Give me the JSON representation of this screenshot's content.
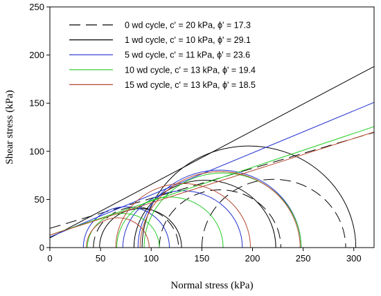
{
  "chart_data": {
    "type": "line",
    "xlabel": "Normal stress (kPa)",
    "ylabel": "Shear stress (kPa)",
    "xlim": [
      0,
      320
    ],
    "ylim": [
      0,
      250
    ],
    "xticks": [
      0,
      50,
      100,
      150,
      200,
      250,
      300
    ],
    "yticks": [
      0,
      50,
      100,
      150,
      200,
      250
    ],
    "grid": false,
    "legend_position": "top-left",
    "series": [
      {
        "name": "0 wd cycle, c' = 20 kPa, ϕ' = 17.3",
        "color": "#000000",
        "dash": "dashed",
        "cohesion": 20,
        "friction_angle": 17.3,
        "circles": [
          [
            43,
            127
          ],
          [
            108,
            228
          ],
          [
            150,
            292
          ]
        ]
      },
      {
        "name": "1 wd cycle, c' = 10 kPa, ϕ' = 29.1",
        "color": "#000000",
        "dash": "solid",
        "cohesion": 10,
        "friction_angle": 29.1,
        "circles": [
          [
            49,
            130
          ],
          [
            83,
            223
          ],
          [
            91,
            302
          ]
        ]
      },
      {
        "name": "5 wd cycle, c' = 11 kPa, ϕ' = 23.6",
        "color": "#1f2fd0",
        "dash": "solid",
        "cohesion": 11,
        "friction_angle": 23.6,
        "circles": [
          [
            33,
            118
          ],
          [
            72,
            190
          ],
          [
            87,
            248
          ]
        ]
      },
      {
        "name": "10 wd cycle, c' = 13 kPa, ϕ' = 19.4",
        "color": "#22cc22",
        "dash": "solid",
        "cohesion": 13,
        "friction_angle": 19.4,
        "circles": [
          [
            37,
            108
          ],
          [
            66,
            171
          ],
          [
            93,
            248
          ]
        ]
      },
      {
        "name": "15 wd cycle, c' = 13 kPa, ϕ' = 18.5",
        "color": "#b5482e",
        "dash": "solid",
        "cohesion": 13,
        "friction_angle": 18.5,
        "circles": [
          [
            36,
            98
          ],
          [
            65,
            198
          ],
          [
            89,
            247
          ]
        ]
      }
    ]
  }
}
